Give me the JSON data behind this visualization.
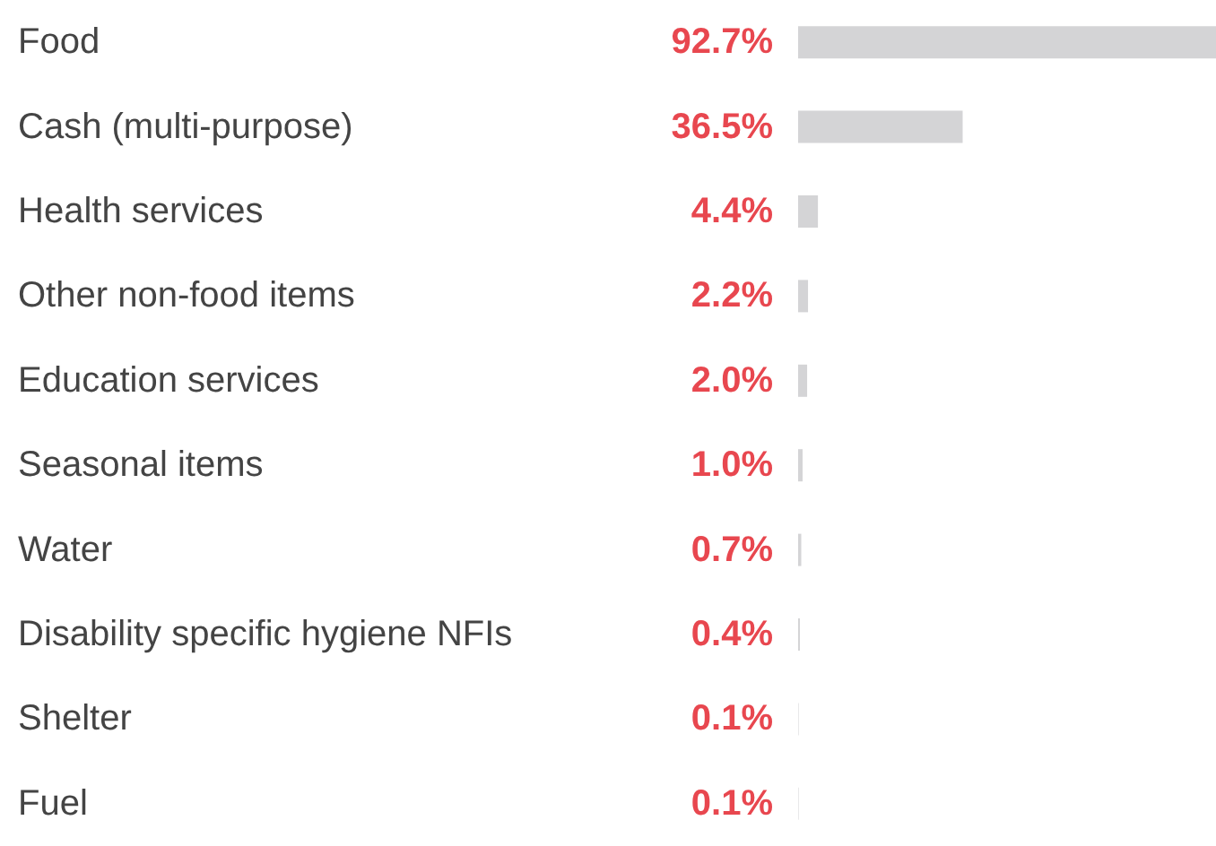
{
  "chart_data": {
    "type": "bar",
    "orientation": "horizontal",
    "categories": [
      "Food",
      "Cash (multi-purpose)",
      "Health services",
      "Other non-food items",
      "Education services",
      "Seasonal items",
      "Water",
      "Disability specific hygiene NFIs",
      "Shelter",
      "Fuel"
    ],
    "values": [
      92.7,
      36.5,
      4.4,
      2.2,
      2.0,
      1.0,
      0.7,
      0.4,
      0.1,
      0.1
    ],
    "value_labels": [
      "92.7%",
      "36.5%",
      "4.4%",
      "2.2%",
      "2.0%",
      "1.0%",
      "0.7%",
      "0.4%",
      "0.1%",
      "0.1%"
    ],
    "color": "#d4d4d6"
  }
}
